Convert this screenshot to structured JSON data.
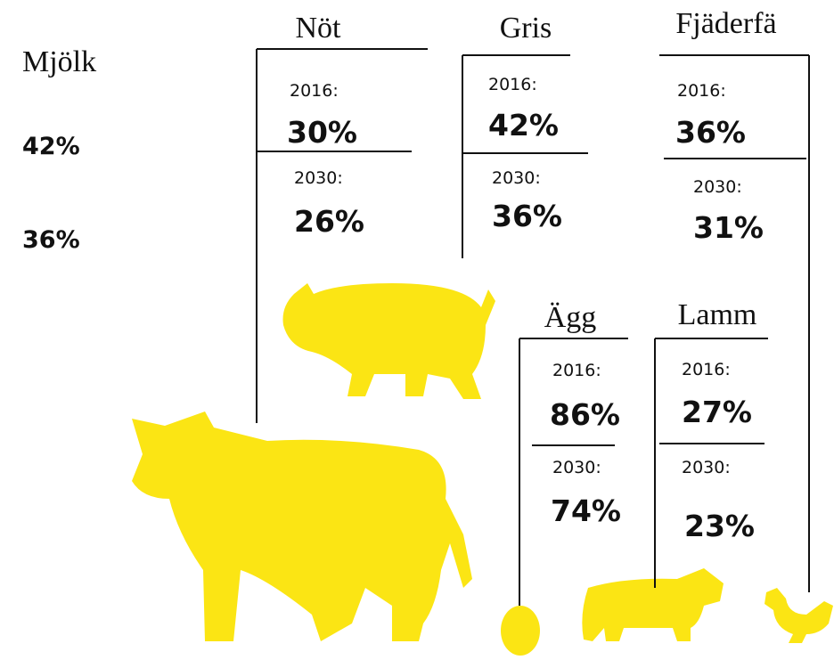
{
  "milk": {
    "title": "Mjölk",
    "values": [
      "42%",
      "36%"
    ]
  },
  "groups": [
    {
      "title": "Nöt",
      "year_1": "2016:",
      "value_1": "30%",
      "year_2": "2030:",
      "value_2": "26%"
    },
    {
      "title": "Gris",
      "year_1": "2016:",
      "value_1": "42%",
      "year_2": "2030:",
      "value_2": "36%"
    },
    {
      "title": "Fjäderfä",
      "year_1": "2016:",
      "value_1": "36%",
      "year_2": "2030:",
      "value_2": "31%"
    },
    {
      "title": "Ägg",
      "year_1": "2016:",
      "value_1": "86%",
      "year_2": "2030:",
      "value_2": "74%"
    },
    {
      "title": "Lamm",
      "year_1": "2016:",
      "value_1": "27%",
      "year_2": "2030:",
      "value_2": "23%"
    }
  ]
}
